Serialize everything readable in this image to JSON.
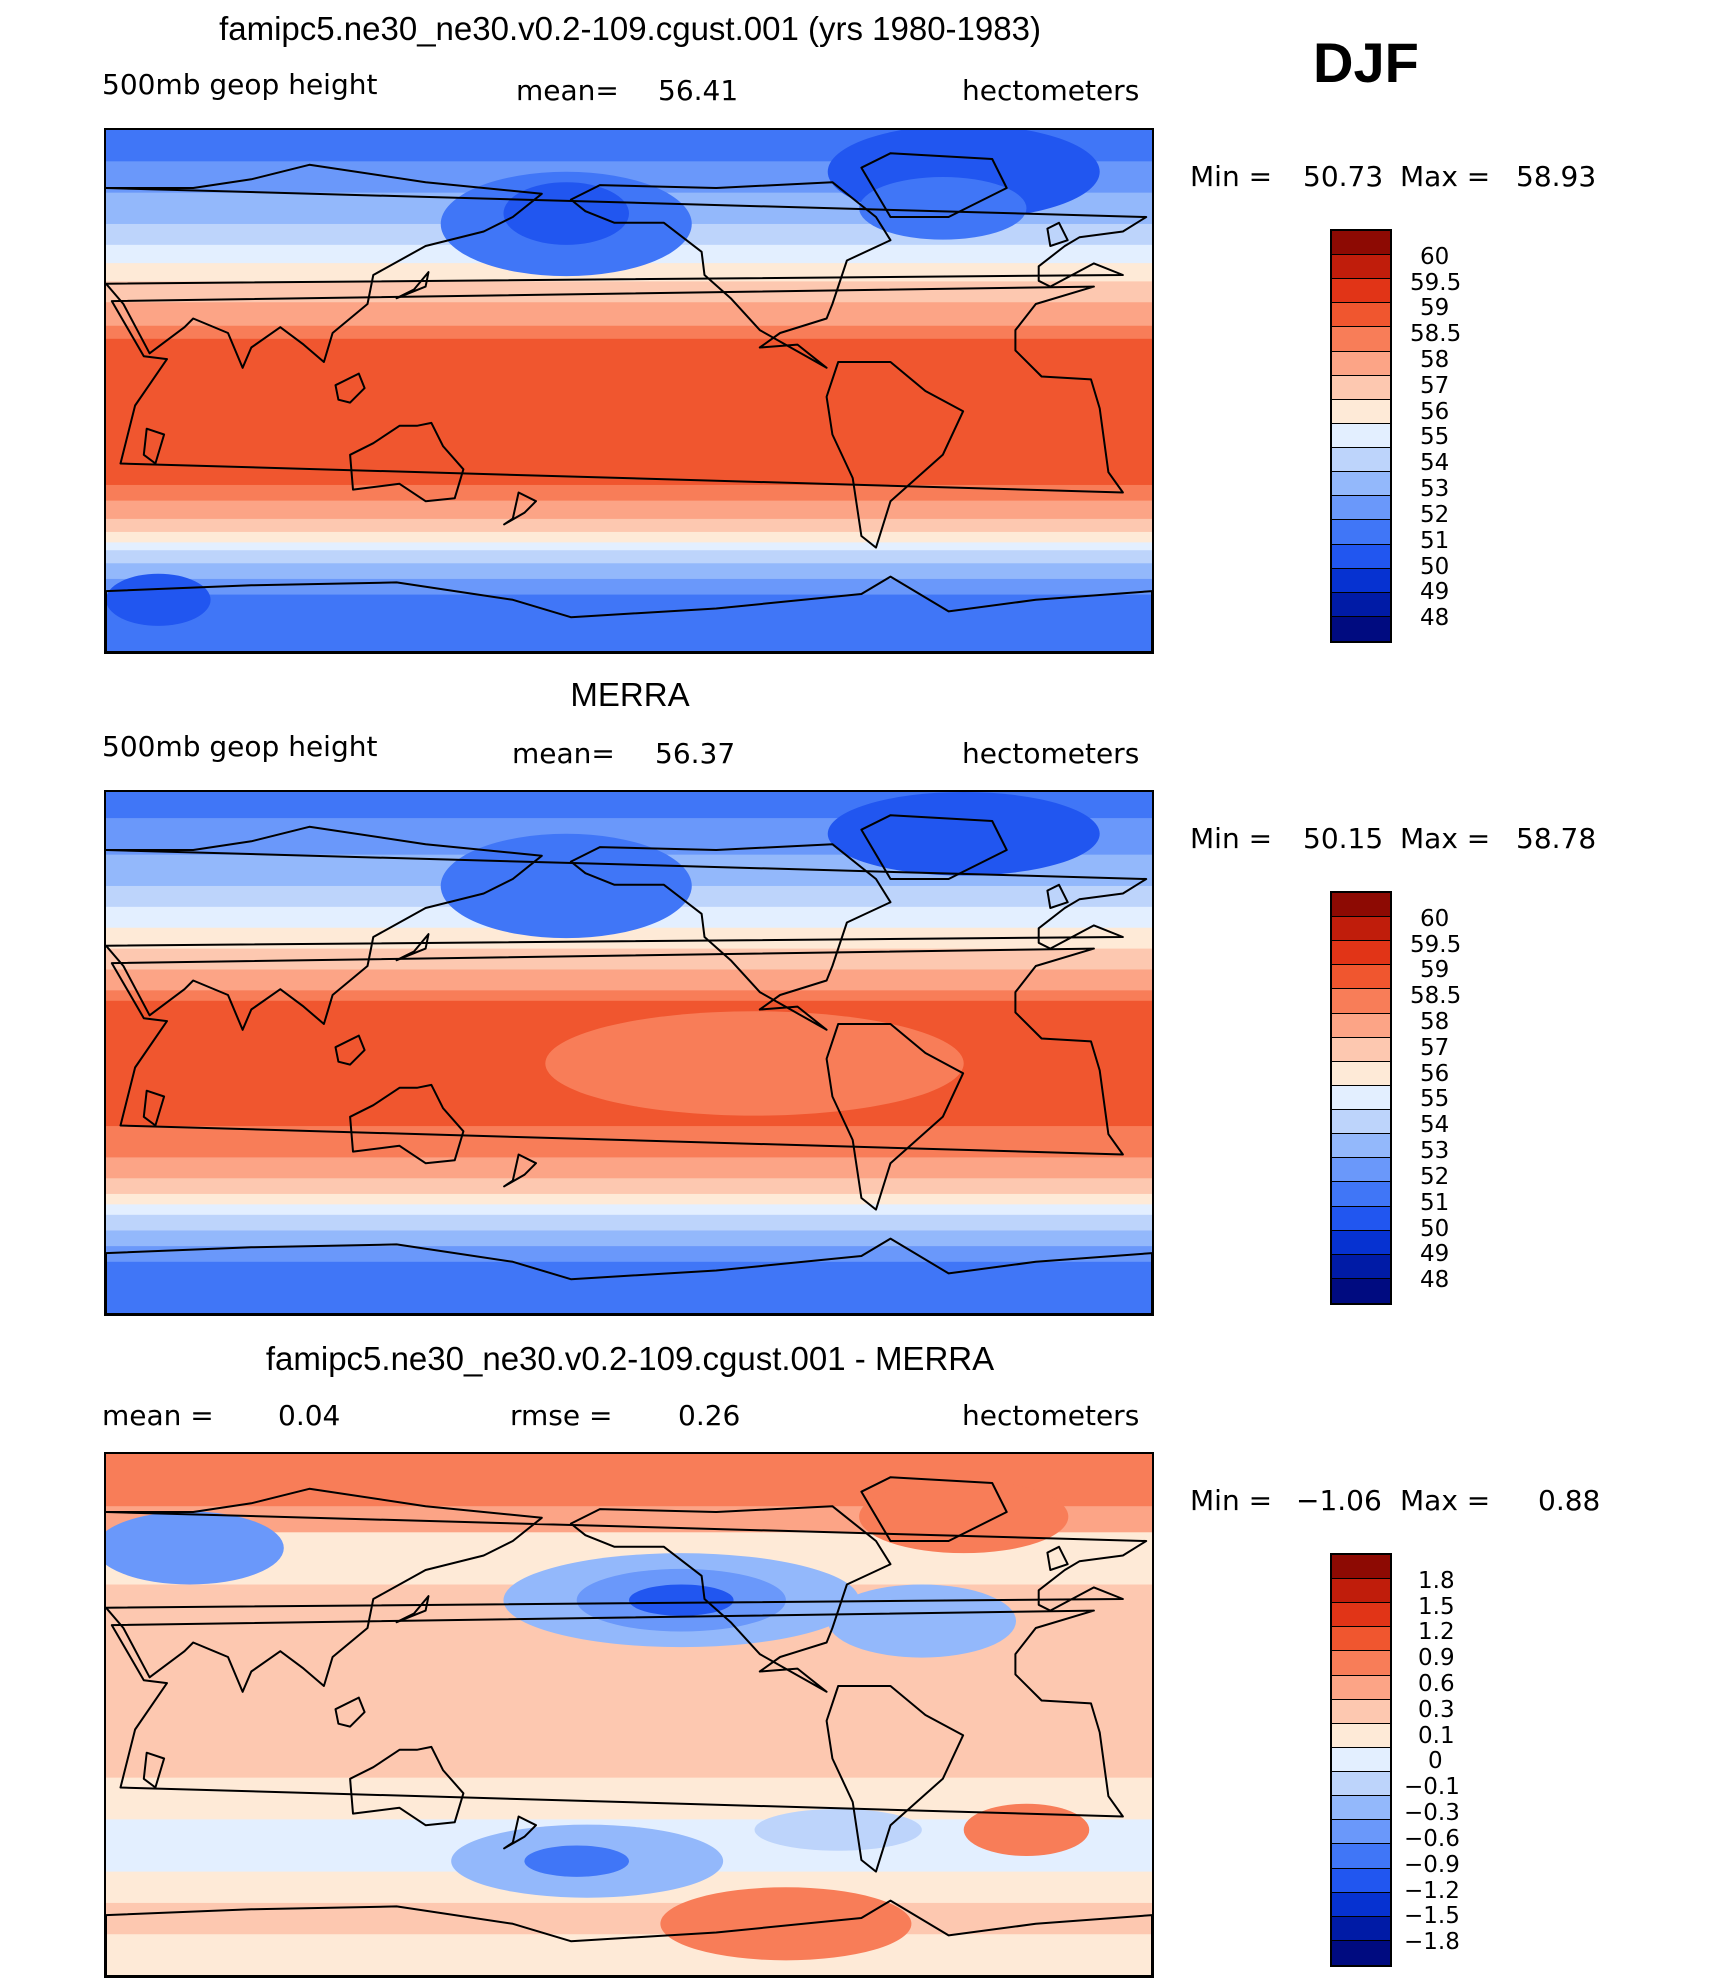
{
  "season": "DJF",
  "colors": {
    "abs_levels": [
      "#000b80",
      "#001ba6",
      "#0632d1",
      "#2156f0",
      "#4076f7",
      "#6a98fa",
      "#93b8fb",
      "#bdd4fb",
      "#e3efff",
      "#feead7",
      "#fdc8b0",
      "#fca486",
      "#f87d58",
      "#f0562f",
      "#e13417",
      "#c01d0b",
      "#8d0a03"
    ],
    "diff_levels": [
      "#000b80",
      "#001ba6",
      "#0632d1",
      "#2156f0",
      "#4076f7",
      "#6a98fa",
      "#93b8fb",
      "#bdd4fb",
      "#e3efff",
      "#feead7",
      "#fdc8b0",
      "#fca486",
      "#f87d58",
      "#f0562f",
      "#e13417",
      "#c01d0b",
      "#8d0a03"
    ]
  },
  "chart_data": [
    {
      "type": "heatmap",
      "title": "famipc5.ne30_ne30.v0.2-109.cgust.001 (yrs 1980-1983)",
      "left_label": "500mb  geop  height",
      "mean_label": "mean=",
      "mean_value": "56.41",
      "units": "hectometers",
      "min_label": "Min =",
      "min_value": "50.73",
      "max_label": "Max =",
      "max_value": "58.93",
      "colorbar_labels": [
        "60",
        "59.5",
        "59",
        "58.5",
        "58",
        "57",
        "56",
        "55",
        "54",
        "53",
        "52",
        "51",
        "50",
        "49",
        "48"
      ]
    },
    {
      "type": "heatmap",
      "title": "MERRA",
      "left_label": "500mb  geop  height",
      "mean_label": "mean=",
      "mean_value": "56.37",
      "units": "hectometers",
      "min_label": "Min =",
      "min_value": "50.15",
      "max_label": "Max =",
      "max_value": "58.78",
      "colorbar_labels": [
        "60",
        "59.5",
        "59",
        "58.5",
        "58",
        "57",
        "56",
        "55",
        "54",
        "53",
        "52",
        "51",
        "50",
        "49",
        "48"
      ]
    },
    {
      "type": "heatmap",
      "title": "famipc5.ne30_ne30.v0.2-109.cgust.001 - MERRA",
      "left_label": "mean =",
      "mean_label": "rmse =",
      "left_value": "0.04",
      "mean_value": "0.26",
      "units": "hectometers",
      "min_label": "Min =",
      "min_value": "−1.06",
      "max_label": "Max =",
      "max_value": "0.88",
      "colorbar_labels": [
        "1.8",
        "1.5",
        "1.2",
        "0.9",
        "0.6",
        "0.3",
        "0.1",
        "0",
        "−0.1",
        "−0.3",
        "−0.6",
        "−0.9",
        "−1.2",
        "−1.5",
        "−1.8"
      ]
    }
  ]
}
